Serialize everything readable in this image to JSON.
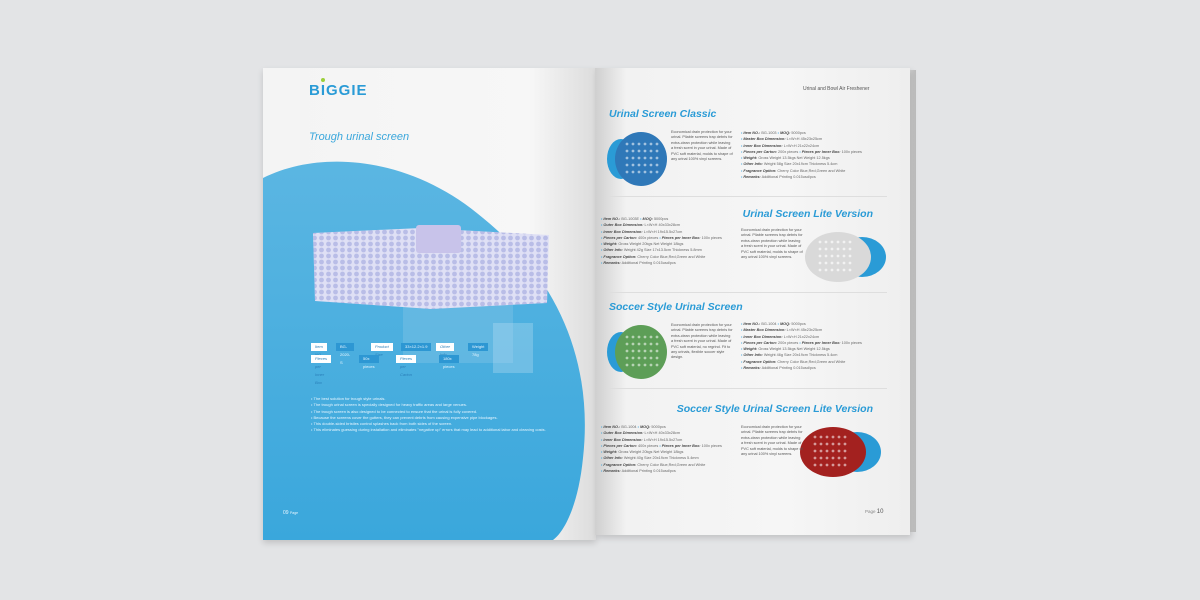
{
  "left_page": {
    "logo": "BIGGIE",
    "title": "Trough urinal screen",
    "info": [
      {
        "label": "Item NO.",
        "value": "BG-2020-S"
      },
      {
        "label": "Product Size",
        "value": "33×12.2×1.9"
      },
      {
        "label": "Other Info",
        "value": "Weight 78g"
      },
      {
        "label": "Pieces per Inner Box",
        "value": "50x pieces"
      },
      {
        "label": "Pieces per Carton",
        "value": "180x pieces"
      }
    ],
    "bullets": [
      "The best solution for trough style urinals.",
      "The trough urinal screen is specially designed for heavy traffic areas and large venues.",
      "The trough screen is also designed to be connected to ensure that the urinal is fully covered.",
      "Because the screens cover the gutters, they can prevent debris from causing expensive pipe blockages.",
      "This double-sided bristles control splashes back from both sides of the screen.",
      "This eliminates guessing during installation and eliminates \"negative up\" errors that may lead to additional labor and cleaning costs."
    ],
    "page_number": "09",
    "page_label": "Page",
    "accent": "#3aa7dc"
  },
  "right_page": {
    "header": "Urinal and Bowl Air Freshener",
    "page_label": "Page",
    "page_number": "10",
    "products": [
      {
        "title": "Urinal Screen Classic",
        "color": "#2f78b8",
        "description": "Economical drain protection for your urinal. Pliable screens trap debris for extra-clean protection while leaving a fresh scent in your urinal. Made of PVC soft material, molds to shape of any urinal 100% vinyl screens.",
        "specs": [
          [
            {
              "label": "Item NO.:",
              "value": "BG-1003"
            },
            {
              "label": "MOQ:",
              "value": "5000pcs"
            }
          ],
          [
            {
              "label": "Master Box Dimension:",
              "value": "L×W×H 45x23x25cm"
            }
          ],
          [
            {
              "label": "Inner Box Dimension:",
              "value": "L×W×H 21x22x24cm"
            }
          ],
          [
            {
              "label": "Pieces per Carton:",
              "value": "200x pieces"
            },
            {
              "label": "Pieces per Inner Box:",
              "value": "100x pieces"
            }
          ],
          [
            {
              "label": "Weight:",
              "value": "Gross Weight 13.5kgs  Net Weight 12.5kgs"
            }
          ],
          [
            {
              "label": "Other Info:",
              "value": "Weight 58g  Size 20x19cm  Thickness 5.4cm"
            }
          ],
          [
            {
              "label": "Fragrance Option:",
              "value": "Cherry  Color Blue,Red,Green and White"
            }
          ],
          [
            {
              "label": "Remarks:",
              "value": "Additional Printing 0.015usd/pcs"
            }
          ]
        ]
      },
      {
        "title": "Urinal Screen Lite Version",
        "color": "#d9d9d9",
        "description": "Economical drain protection for your urinal. Pliable screens trap debris for extra-clean protection while leaving a fresh scent in your urinal. Made of PVC soft material, molds to shape of any urinal 100% vinyl screens.",
        "specs": [
          [
            {
              "label": "Item NO.:",
              "value": "BG-1003E"
            },
            {
              "label": "MOQ:",
              "value": "5000pcs"
            }
          ],
          [
            {
              "label": "Outer Box Dimension:",
              "value": "L×W×H 40x33x28cm"
            }
          ],
          [
            {
              "label": "Inner Box Dimension:",
              "value": "L×W×H 19x15.5x27cm"
            }
          ],
          [
            {
              "label": "Pieces per Carton:",
              "value": "400x pieces"
            },
            {
              "label": "Pieces per Inner Box:",
              "value": "100x pieces"
            }
          ],
          [
            {
              "label": "Weight:",
              "value": "Gross Weight 20kgs  Net Weight 18kgs"
            }
          ],
          [
            {
              "label": "Other Info:",
              "value": "Weight 42g  Size 17x13.5cm  Thickness 5.8mm"
            }
          ],
          [
            {
              "label": "Fragrance Option:",
              "value": "Cherry  Color Blue,Red,Green and White"
            }
          ],
          [
            {
              "label": "Remarks:",
              "value": "Additional Printing 0.015usd/pcs"
            }
          ]
        ]
      },
      {
        "title": "Soccer Style Urinal Screen",
        "color": "#5d9e57",
        "description": "Economical drain protection for your urinal. Pliable screens trap debris for extra-clean protection while leaving a fresh scent in your urinal. Made of PVC soft material, no regrind. Fit to any urinals, flexible soccer style design.",
        "specs": [
          [
            {
              "label": "Item NO.:",
              "value": "BG-1004"
            },
            {
              "label": "MOQ:",
              "value": "5000pcs"
            }
          ],
          [
            {
              "label": "Master Box Dimension:",
              "value": "L×W×H 45x23x25cm"
            }
          ],
          [
            {
              "label": "Inner Box Dimension:",
              "value": "L×W×H 21x22x24cm"
            }
          ],
          [
            {
              "label": "Pieces per Carton:",
              "value": "200x pieces"
            },
            {
              "label": "Pieces per Inner Box:",
              "value": "100x pieces"
            }
          ],
          [
            {
              "label": "Weight:",
              "value": "Gross Weight 13.5kgs  Net Weight 12.5kgs"
            }
          ],
          [
            {
              "label": "Other Info:",
              "value": "Weight 46g  Size 20x19cm  Thickness 5.4cm"
            }
          ],
          [
            {
              "label": "Fragrance Option:",
              "value": "Cherry  Color Blue,Red,Green and White"
            }
          ],
          [
            {
              "label": "Remarks:",
              "value": "Additional Printing 0.015usd/pcs"
            }
          ]
        ]
      },
      {
        "title": "Soccer Style Urinal Screen Lite Version",
        "color": "#a3211f",
        "description": "Economical drain protection for your urinal. Pliable screens trap debris for extra-clean protection while leaving a fresh scent in your urinal. Made of PVC soft material, molds to shape of any urinal 100% vinyl screens.",
        "specs": [
          [
            {
              "label": "Item NO.:",
              "value": "BG-1004"
            },
            {
              "label": "MOQ:",
              "value": "5000pcs"
            }
          ],
          [
            {
              "label": "Outer Box Dimension:",
              "value": "L×W×H 40x33x28cm"
            }
          ],
          [
            {
              "label": "Inner Box Dimension:",
              "value": "L×W×H 19x15.5x27cm"
            }
          ],
          [
            {
              "label": "Pieces per Carton:",
              "value": "400x pieces"
            },
            {
              "label": "Pieces per Inner Box:",
              "value": "100x pieces"
            }
          ],
          [
            {
              "label": "Weight:",
              "value": "Gross Weight 20kgs  Net Weight 18kgs"
            }
          ],
          [
            {
              "label": "Other Info:",
              "value": "Weight 40g  Size 20x19cm  Thickness 5.4mm"
            }
          ],
          [
            {
              "label": "Fragrance Option:",
              "value": "Cherry  Color Blue,Red,Green and White"
            }
          ],
          [
            {
              "label": "Remarks:",
              "value": "Additional Printing 0.015usd/pcs"
            }
          ]
        ]
      }
    ]
  }
}
